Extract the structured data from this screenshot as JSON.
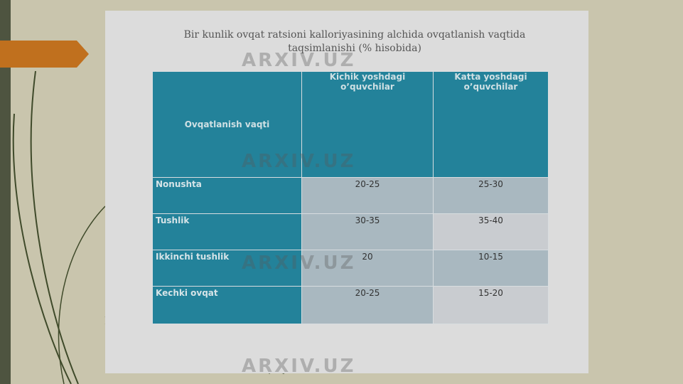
{
  "slide": {
    "title": "Bir kunlik ovqat ratsioni kalloriyasining alchida ovqatlanish vaqtida taqsimlanishi (% hisobida)",
    "table": {
      "headers": [
        "Ovqatlanish vaqti",
        "Kichik yoshdagi o’quvchilar",
        "Katta yoshdagi o’quvchilar"
      ],
      "rows": [
        {
          "meal": "Nonushta",
          "young": "20-25",
          "old": "25-30"
        },
        {
          "meal": "Tushlik",
          "young": "30-35",
          "old": "35-40"
        },
        {
          "meal": "Ikkinchi tushlik",
          "young": "20",
          "old": "10-15"
        },
        {
          "meal": "Kechki ovqat",
          "young": "20-25",
          "old": "15-20"
        }
      ]
    }
  },
  "watermark": "ARXIV.UZ",
  "colors": {
    "header": "#23829a",
    "background": "#c9c5ad",
    "accent_arrow": "#c0701e"
  }
}
